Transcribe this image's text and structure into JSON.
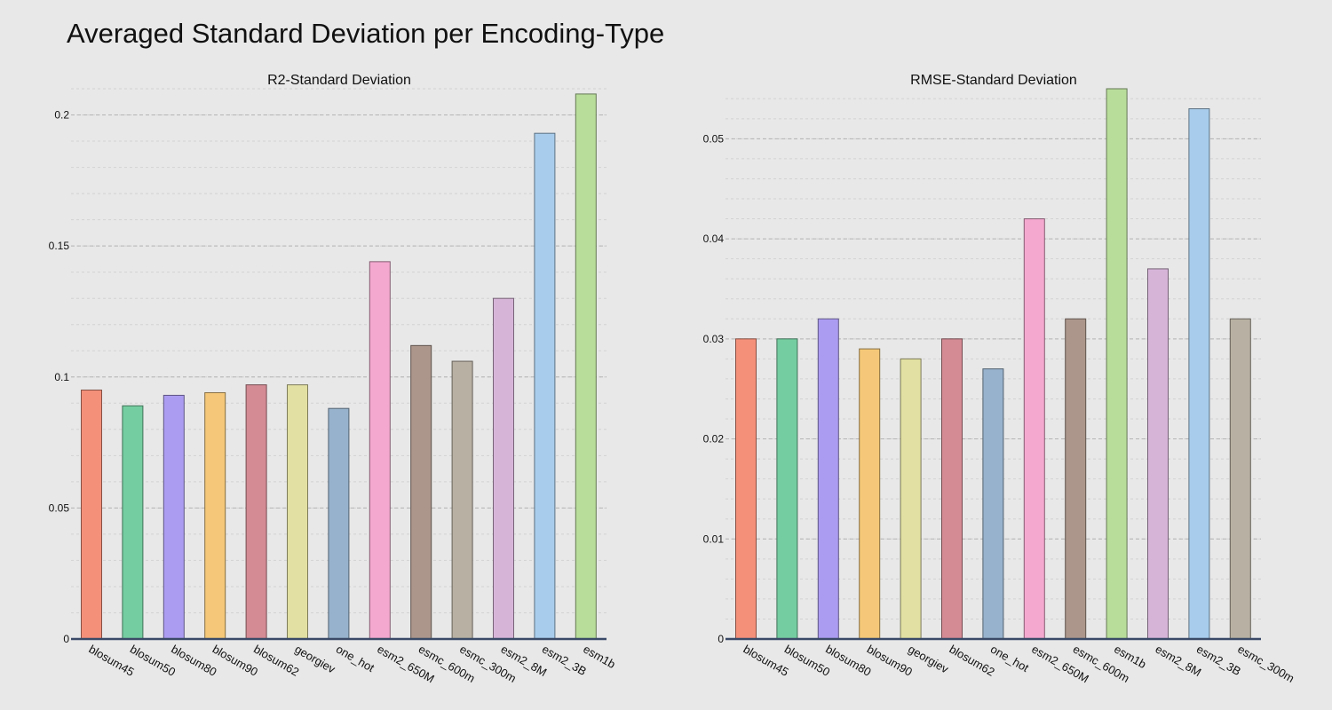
{
  "page": {
    "title": "Averaged Standard Deviation per Encoding-Type"
  },
  "chart_data": [
    {
      "type": "bar",
      "title": "R2-Standard Deviation",
      "xlabel": "",
      "ylabel": "",
      "ylim": [
        0,
        0.21
      ],
      "yticks": [
        0,
        0.05,
        0.1,
        0.15,
        0.2
      ],
      "tick_labels": [
        "0",
        "0.05",
        "0.1",
        "0.15",
        "0.2"
      ],
      "minor_step": 0.01,
      "grid": true,
      "categories": [
        "blosum45",
        "blosum50",
        "blosum80",
        "blosum90",
        "blosum62",
        "georgiev",
        "one_hot",
        "esm2_650M",
        "esmc_600m",
        "esmc_300m",
        "esm2_8M",
        "esm2_3B",
        "esm1b"
      ],
      "values": [
        0.095,
        0.089,
        0.093,
        0.094,
        0.097,
        0.097,
        0.088,
        0.144,
        0.112,
        0.106,
        0.13,
        0.193,
        0.208
      ],
      "colors": [
        "#f4907a",
        "#74cda0",
        "#ac9cf1",
        "#f4c878",
        "#d48b94",
        "#e2e0a2",
        "#97b2cc",
        "#f4a8cf",
        "#ac968b",
        "#b8b0a2",
        "#d6b4d8",
        "#a8cdec",
        "#b8dc9a"
      ]
    },
    {
      "type": "bar",
      "title": "RMSE-Standard Deviation",
      "xlabel": "",
      "ylabel": "",
      "ylim": [
        0,
        0.055
      ],
      "yticks": [
        0,
        0.01,
        0.02,
        0.03,
        0.04,
        0.05
      ],
      "tick_labels": [
        "0",
        "0.01",
        "0.02",
        "0.03",
        "0.04",
        "0.05"
      ],
      "minor_step": 0.002,
      "grid": true,
      "categories": [
        "blosum45",
        "blosum50",
        "blosum80",
        "blosum90",
        "georgiev",
        "blosum62",
        "one_hot",
        "esm2_650M",
        "esmc_600m",
        "esm1b",
        "esm2_8M",
        "esm2_3B",
        "esmc_300m"
      ],
      "values": [
        0.03,
        0.03,
        0.032,
        0.029,
        0.028,
        0.03,
        0.027,
        0.042,
        0.032,
        0.055,
        0.037,
        0.053,
        0.032
      ],
      "colors": [
        "#f4907a",
        "#74cda0",
        "#ac9cf1",
        "#f4c878",
        "#e2e0a2",
        "#d48b94",
        "#97b2cc",
        "#f4a8cf",
        "#ac968b",
        "#b8dc9a",
        "#d6b4d8",
        "#a8cdec",
        "#b8b0a2"
      ]
    }
  ]
}
